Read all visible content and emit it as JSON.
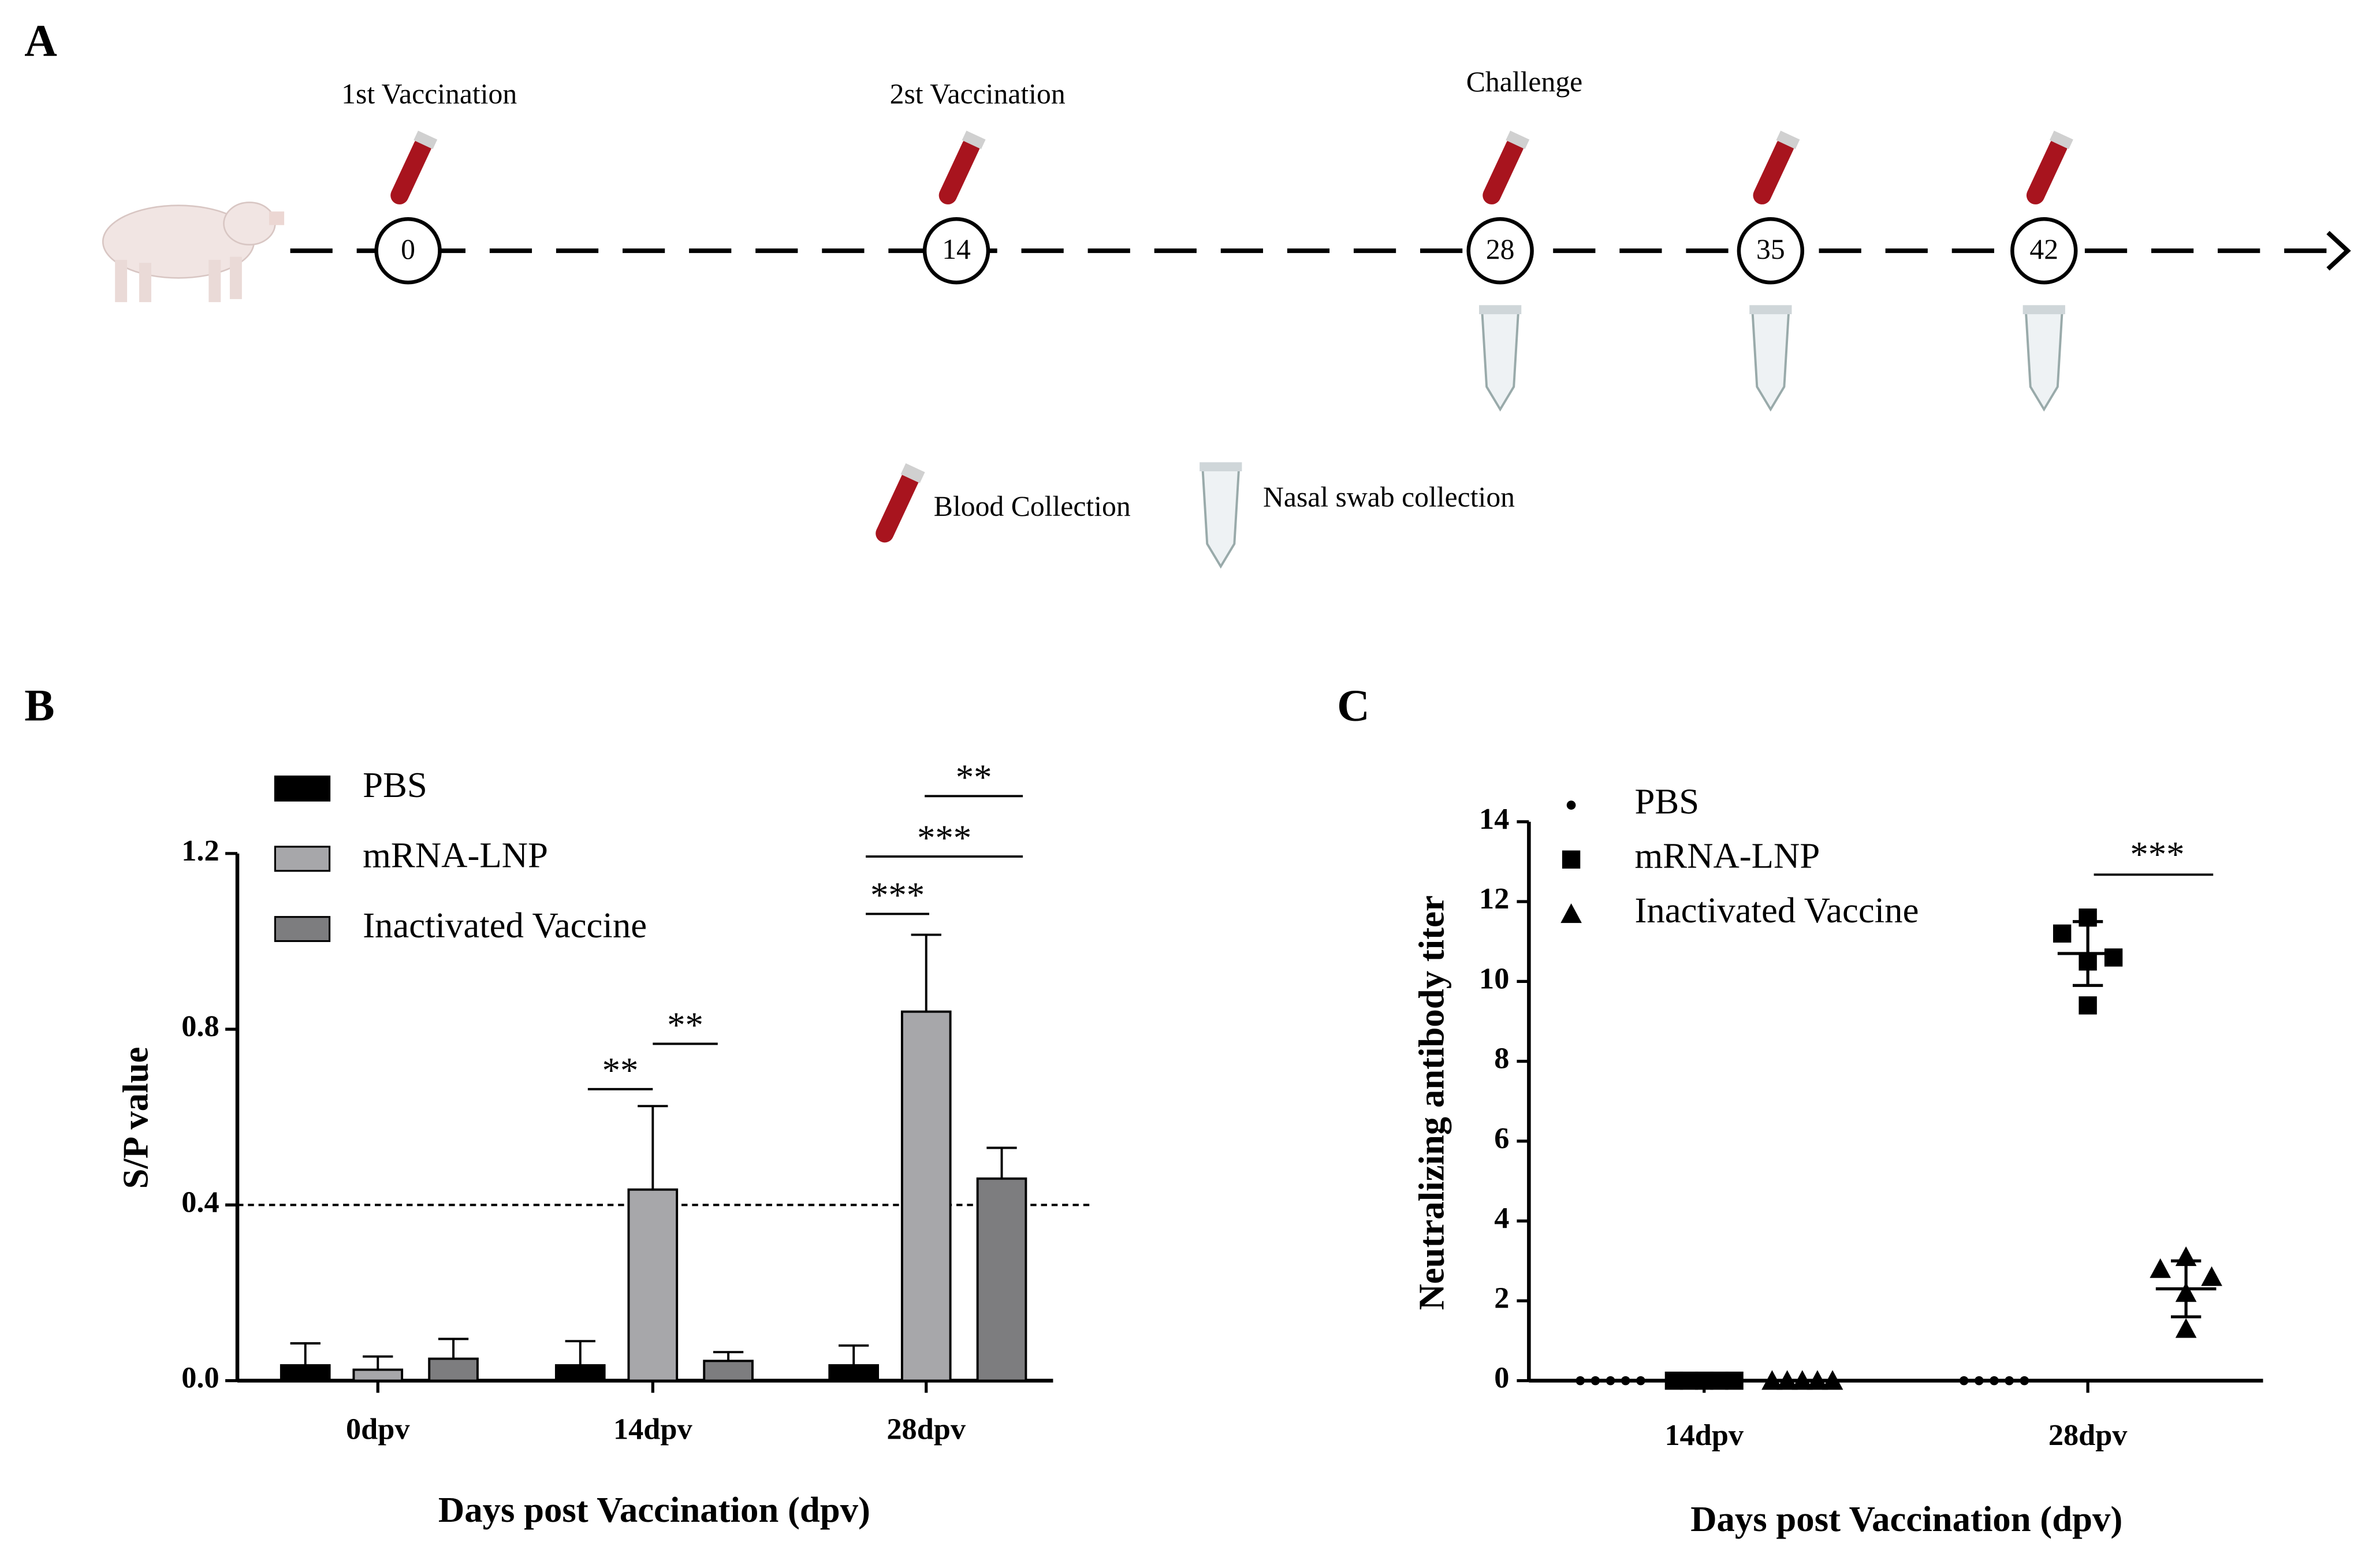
{
  "panel_labels": [
    "A",
    "B",
    "C"
  ],
  "timeline": {
    "timepoints": [
      {
        "day": "0",
        "event": "1st Vaccination"
      },
      {
        "day": "14",
        "event": "2st Vaccination"
      },
      {
        "day": "28",
        "event": "Challenge"
      },
      {
        "day": "35"
      },
      {
        "day": "42"
      }
    ],
    "legend": [
      "Blood Collection",
      "Nasal swab collection"
    ]
  },
  "chart_data": [
    {
      "type": "bar",
      "ylabel": "S/P value",
      "xlabel": "Days post Vaccination (dpv)",
      "categories": [
        "0dpv",
        "14dpv",
        "28dpv"
      ],
      "series": [
        {
          "name": "PBS",
          "color": "#000000",
          "values": [
            0.035,
            0.035,
            0.035
          ],
          "errors": [
            0.05,
            0.055,
            0.045
          ]
        },
        {
          "name": "mRNA-LNP",
          "color": "#a7a7aa",
          "values": [
            0.025,
            0.435,
            0.84
          ],
          "errors": [
            0.03,
            0.19,
            0.175
          ]
        },
        {
          "name": "Inactivated Vaccine",
          "color": "#7d7d7f",
          "values": [
            0.05,
            0.045,
            0.46
          ],
          "errors": [
            0.045,
            0.02,
            0.07
          ]
        }
      ],
      "ylim": [
        0,
        1.2
      ],
      "yticks": [
        {
          "value": 0,
          "label": "0.0"
        },
        0.4,
        0.8,
        1.2
      ],
      "threshold": 0.4,
      "significance": [
        "**",
        "**",
        "***",
        "***",
        "**"
      ]
    },
    {
      "type": "scatter",
      "ylabel": "Neutralizing antibody titer",
      "xlabel": "Days post Vaccination (dpv)",
      "categories": [
        "14dpv",
        "28dpv"
      ],
      "series": [
        {
          "name": "PBS",
          "color": "#000000",
          "marker": "circle",
          "values": [
            [
              0,
              0,
              0,
              0,
              0
            ],
            [
              0,
              0,
              0,
              0,
              0
            ]
          ],
          "means": [
            null,
            null
          ],
          "errors": [
            null,
            null
          ]
        },
        {
          "name": "mRNA-LNP",
          "color": "#000000",
          "marker": "square",
          "values": [
            [
              0,
              0,
              0,
              0,
              0
            ],
            [
              11.6,
              11.2,
              10.6,
              10.5,
              9.4
            ]
          ],
          "means": [
            null,
            10.7
          ],
          "errors": [
            null,
            0.8
          ]
        },
        {
          "name": "Inactivated Vaccine",
          "color": "#000000",
          "marker": "triangle",
          "values": [
            [
              0,
              0,
              0,
              0,
              0
            ],
            [
              3.1,
              2.8,
              2.6,
              2.2,
              1.3
            ]
          ],
          "means": [
            null,
            2.3
          ],
          "errors": [
            null,
            0.7
          ]
        }
      ],
      "ylim": [
        0,
        14
      ],
      "yticks": [
        0,
        2,
        4,
        6,
        8,
        10,
        12,
        14
      ],
      "significance": [
        "***"
      ]
    }
  ]
}
